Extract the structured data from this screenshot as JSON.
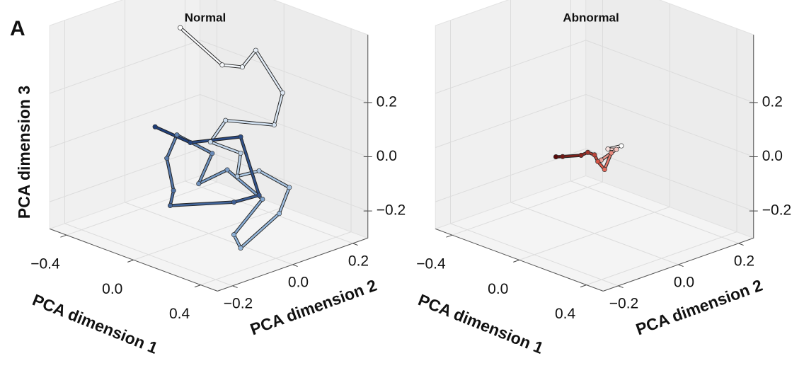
{
  "figure": {
    "label": "A"
  },
  "chart_data": [
    {
      "type": "line3d",
      "title": "Normal",
      "xlabel": "PCA dimension 1",
      "ylabel": "PCA dimension 2",
      "zlabel": "PCA dimension 3",
      "xlim": [
        -0.5,
        0.5
      ],
      "ylim": [
        -0.25,
        0.25
      ],
      "zlim": [
        -0.3,
        0.45
      ],
      "xticks": [
        {
          "value": -0.4,
          "label": "−0.4"
        },
        {
          "value": 0,
          "label": "0.0"
        },
        0.4
      ],
      "yticks": [
        {
          "value": -0.2,
          "label": "−0.2"
        },
        {
          "value": 0,
          "label": "0.0"
        },
        0.2
      ],
      "zticks": [
        {
          "value": -0.2,
          "label": "−0.2"
        },
        {
          "value": 0,
          "label": "0.0"
        },
        0.2
      ],
      "grid": true,
      "colors": [
        "#ffffff",
        "#8fb3d9",
        "#1c3c78"
      ],
      "x": [
        -0.17,
        0.08,
        0.2,
        0.28,
        0.44,
        0.39,
        0.1,
        0.01,
        0.19,
        0.17,
        0.3,
        0.48,
        0.42,
        0.19,
        0.15,
        0.32,
        0.11,
        -0.06,
        0.02,
        -0.19,
        -0.25,
        -0.21,
        -0.23,
        0.15,
        0.3,
        0.19,
        -0.11,
        -0.32
      ],
      "y": [
        0,
        0,
        0,
        0,
        0,
        0,
        0,
        0,
        0,
        0,
        0,
        0,
        0,
        0,
        0,
        0,
        0,
        0,
        0,
        0,
        0,
        0,
        0,
        0,
        0,
        0,
        0,
        0
      ],
      "z": [
        0.42,
        0.34,
        0.36,
        0.44,
        0.32,
        0.19,
        0.14,
        0.04,
        0.04,
        -0.05,
        0,
        -0.02,
        -0.13,
        -0.31,
        -0.27,
        -0.1,
        -0.04,
        -0.13,
        0,
        0.02,
        -0.08,
        -0.19,
        -0.25,
        -0.15,
        -0.09,
        0.1,
        0.01,
        0.02
      ]
    },
    {
      "type": "line3d",
      "title": "Abnormal",
      "xlabel": "PCA dimension 1",
      "ylabel": "PCA dimension 2",
      "zlabel": null,
      "xlim": [
        -0.5,
        0.5
      ],
      "ylim": [
        -0.25,
        0.25
      ],
      "zlim": [
        -0.3,
        0.45
      ],
      "xticks": [
        {
          "value": -0.4,
          "label": "−0.4"
        },
        {
          "value": 0,
          "label": "0.0"
        },
        0.4
      ],
      "yticks": [
        {
          "value": -0.2,
          "label": "−0.2"
        },
        {
          "value": 0,
          "label": "0.0"
        },
        0.2
      ],
      "zticks": [
        {
          "value": -0.2,
          "label": "−0.2"
        },
        {
          "value": 0,
          "label": "0.0"
        },
        0.2
      ],
      "grid": true,
      "colors": [
        "#ffffff",
        "#e05a4a",
        "#5a0a0a"
      ],
      "x": [
        0.16,
        0.08,
        0.13,
        0.04,
        0.1,
        0.06,
        0.02,
        0,
        -0.04,
        -0.08,
        -0.19,
        -0.23
      ],
      "y": [
        0,
        0,
        0,
        0,
        0,
        0,
        0,
        0,
        0,
        0,
        0,
        0
      ],
      "z": [
        0.06,
        0.03,
        0.04,
        -0.02,
        0.02,
        -0.05,
        -0.03,
        -0.01,
        -0.01,
        -0.03,
        -0.06,
        -0.07
      ]
    }
  ]
}
